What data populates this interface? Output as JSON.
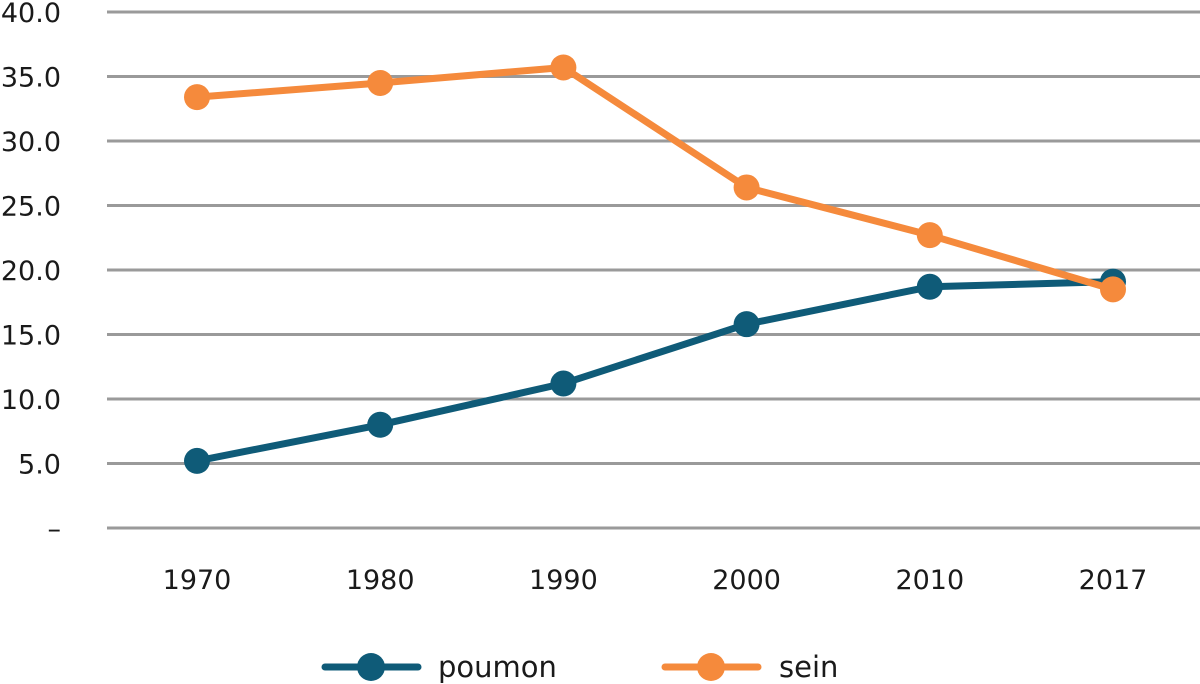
{
  "chart_data": {
    "type": "line",
    "categories": [
      "1970",
      "1980",
      "1990",
      "2000",
      "2010",
      "2017"
    ],
    "y_ticks": [
      "–",
      "5.0",
      "10.0",
      "15.0",
      "20.0",
      "25.0",
      "30.0",
      "35.0",
      "40.0"
    ],
    "ylim": [
      0,
      40
    ],
    "grid": true,
    "legend_position": "bottom",
    "series": [
      {
        "name": "poumon",
        "color": "#0f5b78",
        "values": [
          5.2,
          8.0,
          11.2,
          15.8,
          18.7,
          19.1
        ]
      },
      {
        "name": "sein",
        "color": "#f58a3c",
        "values": [
          33.4,
          34.5,
          35.7,
          26.4,
          22.7,
          18.5
        ]
      }
    ]
  }
}
